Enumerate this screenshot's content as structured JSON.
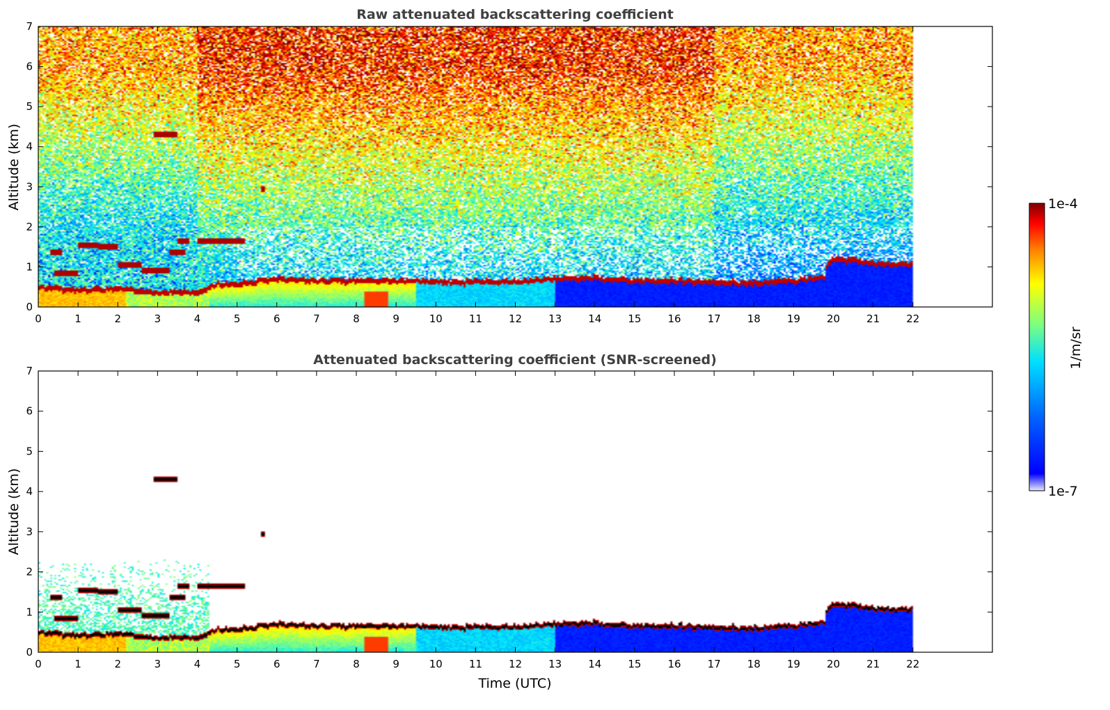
{
  "colors": {
    "jet": [
      "#00007f",
      "#0000ff",
      "#007fff",
      "#00ffff",
      "#7fff7f",
      "#ffff00",
      "#ff7f00",
      "#ff0000",
      "#7f0000"
    ],
    "cloud_core": "#000000"
  },
  "colorbar": {
    "label": "1/m/sr",
    "min_label": "1e-7",
    "max_label": "1e-4",
    "range": [
      1e-07,
      0.0001
    ],
    "scale": "log"
  },
  "shared_xlabel": "Time (UTC)",
  "chart_data": [
    {
      "type": "heatmap",
      "title": "Raw attenuated backscattering coefficient",
      "xlabel": "",
      "ylabel": "Altitude (km)",
      "xlim": [
        0,
        24
      ],
      "ylim": [
        0,
        7
      ],
      "xticks": [
        0,
        1,
        2,
        3,
        4,
        5,
        6,
        7,
        8,
        9,
        10,
        11,
        12,
        13,
        14,
        15,
        16,
        17,
        18,
        19,
        20,
        21,
        22
      ],
      "yticks": [
        0,
        1,
        2,
        3,
        4,
        5,
        6,
        7
      ],
      "data_extent_hours": 22,
      "colorscale": "jet-log",
      "features": {
        "boundary_layer_top_km": [
          [
            0,
            0.5
          ],
          [
            1,
            0.4
          ],
          [
            2,
            0.45
          ],
          [
            3,
            0.35
          ],
          [
            4,
            0.35
          ],
          [
            4.5,
            0.55
          ],
          [
            5,
            0.55
          ],
          [
            6,
            0.7
          ],
          [
            7,
            0.65
          ],
          [
            8,
            0.65
          ],
          [
            9,
            0.65
          ],
          [
            10,
            0.62
          ],
          [
            11,
            0.62
          ],
          [
            12,
            0.62
          ],
          [
            13,
            0.7
          ],
          [
            14,
            0.72
          ],
          [
            15,
            0.65
          ],
          [
            16,
            0.65
          ],
          [
            17,
            0.6
          ],
          [
            18,
            0.6
          ],
          [
            19,
            0.65
          ],
          [
            19.8,
            0.75
          ],
          [
            19.8,
            1.0
          ],
          [
            20,
            1.2
          ],
          [
            21,
            1.1
          ],
          [
            22,
            1.05
          ]
        ],
        "cloud_layers": [
          {
            "x0": 0.3,
            "x1": 0.6,
            "alt_km": 1.35
          },
          {
            "x0": 0.4,
            "x1": 1.0,
            "alt_km": 0.85
          },
          {
            "x0": 1.0,
            "x1": 1.5,
            "alt_km": 1.55
          },
          {
            "x0": 1.5,
            "x1": 2.0,
            "alt_km": 1.5
          },
          {
            "x0": 2.0,
            "x1": 2.6,
            "alt_km": 1.05
          },
          {
            "x0": 2.6,
            "x1": 3.3,
            "alt_km": 0.9
          },
          {
            "x0": 3.3,
            "x1": 3.7,
            "alt_km": 1.35
          },
          {
            "x0": 3.5,
            "x1": 3.8,
            "alt_km": 1.65
          },
          {
            "x0": 4.0,
            "x1": 5.2,
            "alt_km": 1.65
          },
          {
            "x0": 2.9,
            "x1": 3.5,
            "alt_km": 4.3
          },
          {
            "x0": 5.6,
            "x1": 5.7,
            "alt_km": 2.95
          }
        ]
      }
    },
    {
      "type": "heatmap",
      "title": "Attenuated backscattering coefficient (SNR-screened)",
      "xlabel": "Time (UTC)",
      "ylabel": "Altitude (km)",
      "xlim": [
        0,
        24
      ],
      "ylim": [
        0,
        7
      ],
      "xticks": [
        0,
        1,
        2,
        3,
        4,
        5,
        6,
        7,
        8,
        9,
        10,
        11,
        12,
        13,
        14,
        15,
        16,
        17,
        18,
        19,
        20,
        21,
        22
      ],
      "yticks": [
        0,
        1,
        2,
        3,
        4,
        5,
        6,
        7
      ],
      "data_extent_hours": 22,
      "colorscale": "jet-log"
    }
  ]
}
